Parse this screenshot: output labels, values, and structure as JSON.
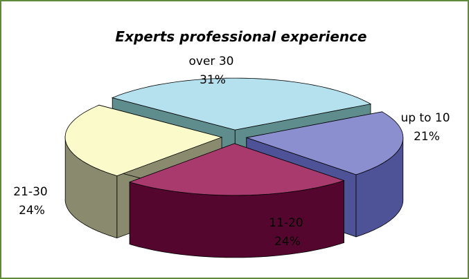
{
  "chart_data": {
    "type": "pie",
    "title": "Experts professional experience",
    "slices": [
      {
        "label": "up to 10",
        "value": 21,
        "value_label": "21%",
        "top_color": "#8b8fcf",
        "side_color": "#4e5296"
      },
      {
        "label": "11-20",
        "value": 24,
        "value_label": "24%",
        "top_color": "#a83a6e",
        "side_color": "#55062e"
      },
      {
        "label": "21-30",
        "value": 24,
        "value_label": "24%",
        "top_color": "#fbfacb",
        "side_color": "#8a8a6e"
      },
      {
        "label": "over 30",
        "value": 31,
        "value_label": "31%",
        "top_color": "#b5e1ee",
        "side_color": "#5f8c8c"
      }
    ],
    "style": "3d-exploded",
    "legend": "none"
  }
}
